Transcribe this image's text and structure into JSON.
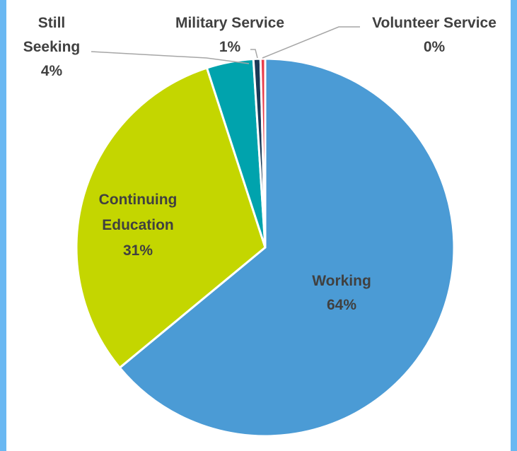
{
  "chart_data": {
    "type": "pie",
    "title": "",
    "start_angle_deg": 0,
    "direction": "clockwise",
    "slices": [
      {
        "name": "Working",
        "label_lines": [
          "Working",
          "64%"
        ],
        "value": 64,
        "color": "#4b9bd5"
      },
      {
        "name": "Continuing Education",
        "label_lines": [
          "Continuing",
          "Education",
          "31%"
        ],
        "value": 31,
        "color": "#c4d600"
      },
      {
        "name": "Still Seeking",
        "label_lines": [
          "Still",
          "Seeking",
          "4%"
        ],
        "value": 4,
        "color": "#00a3ad"
      },
      {
        "name": "Military Service",
        "label_lines": [
          "Military Service",
          "1%"
        ],
        "value": 0.6,
        "color": "#1b3a57"
      },
      {
        "name": "Volunteer Service",
        "label_lines": [
          "Volunteer Service",
          "0%"
        ],
        "value": 0.4,
        "color": "#e83e4b"
      }
    ],
    "legend": "none",
    "slice_border_color": "#ffffff"
  }
}
